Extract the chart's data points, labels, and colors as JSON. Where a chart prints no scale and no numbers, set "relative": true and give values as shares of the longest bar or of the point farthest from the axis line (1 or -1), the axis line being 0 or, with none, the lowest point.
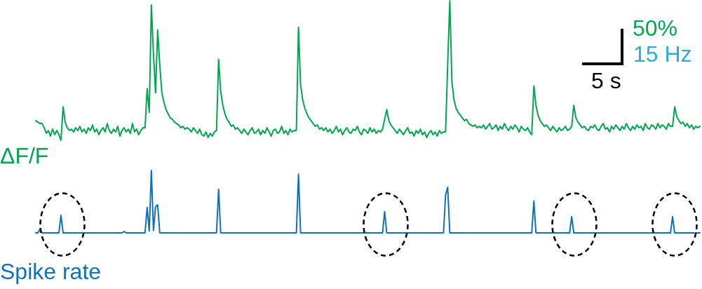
{
  "chart_data": [
    {
      "type": "line",
      "relative": true,
      "categories": [
        null,
        null,
        null,
        null,
        null,
        null,
        null,
        null,
        null,
        null,
        null,
        null,
        null,
        null,
        null,
        null,
        null,
        null,
        null,
        null,
        null,
        null,
        null,
        null,
        null,
        null,
        null,
        null,
        null,
        null,
        null,
        null,
        null,
        null,
        null,
        null,
        null,
        null,
        null,
        null,
        null,
        null,
        null,
        null,
        null,
        null,
        null,
        null,
        null,
        null,
        null,
        null,
        null,
        null,
        null,
        null,
        null,
        null,
        null,
        null,
        null,
        null,
        null,
        null,
        null,
        null,
        null,
        null,
        null,
        null,
        null,
        null,
        null,
        null,
        null,
        null,
        null,
        null,
        null,
        null,
        null,
        null,
        null,
        null,
        null,
        null,
        null,
        null,
        null,
        null,
        null,
        null,
        null,
        null,
        null,
        null,
        null,
        null,
        null,
        null,
        null,
        null,
        null,
        null,
        null,
        null,
        null,
        null,
        null,
        null,
        null,
        null,
        null,
        null,
        null,
        null,
        null,
        null,
        null,
        null,
        null,
        null,
        null,
        null,
        null,
        null,
        null,
        null,
        null,
        null,
        null,
        null,
        null,
        null,
        null,
        null,
        null,
        null,
        null,
        null,
        null,
        null,
        null,
        null,
        null,
        null,
        null,
        null,
        null,
        null,
        null,
        null,
        null,
        null,
        null,
        null,
        null,
        null,
        null,
        null,
        null,
        null,
        null,
        null,
        null,
        null,
        null,
        null,
        null,
        null,
        null,
        null,
        null,
        null,
        null,
        null,
        null,
        null,
        null,
        null,
        null,
        null,
        null,
        null,
        null,
        null,
        null,
        null,
        null,
        null,
        null,
        null,
        null,
        null,
        null,
        null,
        null,
        null,
        null,
        null,
        null,
        null,
        null,
        null,
        null,
        null,
        null,
        null,
        null,
        null,
        null,
        null,
        null,
        null,
        null,
        null,
        null,
        null,
        null,
        null,
        null,
        null,
        null,
        null,
        null,
        null,
        null,
        null,
        null,
        null,
        null,
        null,
        null,
        null,
        null,
        null,
        null,
        null,
        null,
        null,
        null,
        null,
        null,
        null,
        null,
        null,
        null,
        null,
        null,
        null,
        null,
        null,
        null,
        null,
        null,
        null,
        null,
        null,
        null,
        null,
        null,
        null,
        null,
        null,
        null,
        null,
        null,
        null,
        null,
        null,
        null,
        null,
        null,
        null,
        null,
        null,
        null,
        null,
        null,
        null,
        null,
        null,
        null,
        null,
        null,
        null,
        null,
        null,
        null,
        null,
        null,
        null,
        null,
        null,
        null,
        null,
        null,
        null,
        null,
        null,
        null,
        null,
        null,
        null,
        null,
        null,
        null,
        null,
        null,
        null,
        null,
        null,
        null,
        null,
        null,
        null,
        null
      ],
      "series": [
        {
          "name": "ΔF/F",
          "color": "#00a650",
          "values": [
            0.14,
            0.13,
            0.12,
            0.12,
            0.09,
            0.05,
            0.07,
            0.03,
            0.08,
            0.04,
            0.07,
            0.04,
            0,
            0.24,
            0.13,
            0.09,
            0.07,
            0.08,
            0.06,
            0.09,
            0.07,
            0.1,
            0.06,
            0.08,
            0.05,
            0.09,
            0.07,
            0.11,
            0.06,
            0.08,
            0.04,
            0.07,
            0.09,
            0.06,
            0.12,
            0.07,
            0.05,
            0.08,
            0.06,
            0.1,
            0.03,
            0.07,
            0.09,
            0.06,
            0.08,
            0.05,
            0.12,
            0.06,
            0.08,
            0.04,
            0.07,
            0.09,
            0.09,
            0.37,
            0.2,
            0.97,
            0.62,
            0.34,
            0.79,
            0.54,
            0.34,
            0.27,
            0.22,
            0.19,
            0.16,
            0.15,
            0.13,
            0.12,
            0.11,
            0.09,
            0.1,
            0.08,
            0.09,
            0.08,
            0.06,
            0.09,
            0.07,
            0.05,
            0.08,
            0.04,
            0.03,
            0.06,
            0.02,
            0.05,
            0.03,
            0.06,
            0.07,
            0.58,
            0.35,
            0.25,
            0.19,
            0.15,
            0.13,
            0.1,
            0.11,
            0.08,
            0.09,
            0.07,
            0.05,
            0.08,
            0.06,
            0.04,
            0.07,
            0.09,
            0.05,
            0.06,
            0.08,
            0.04,
            0.07,
            0.05,
            0.09,
            0.06,
            0.03,
            0.07,
            0.08,
            0.05,
            0.06,
            0.1,
            0.05,
            0.07,
            0.04,
            0.08,
            0.06,
            0.07,
            0.07,
            0.81,
            0.4,
            0.29,
            0.23,
            0.19,
            0.16,
            0.14,
            0.12,
            0.1,
            0.11,
            0.08,
            0.09,
            0.07,
            0.09,
            0.06,
            0.08,
            0.05,
            0.07,
            0.1,
            0.06,
            0.08,
            0.04,
            0.07,
            0.09,
            0.06,
            0.05,
            0.08,
            0.07,
            0.1,
            0.06,
            0.04,
            0.08,
            0.07,
            0.05,
            0.09,
            0.06,
            0.08,
            0.05,
            0.07,
            0.06,
            0.08,
            0.15,
            0.22,
            0.14,
            0.11,
            0.09,
            0.07,
            0.05,
            0.08,
            0.06,
            0.04,
            0.07,
            0.09,
            0.05,
            0.06,
            0.03,
            0.07,
            0.05,
            0.08,
            0.04,
            0.06,
            0.02,
            0.05,
            0.07,
            0.04,
            0.06,
            0.03,
            0.07,
            0.05,
            0.06,
            0.06,
            0.55,
            1.0,
            0.42,
            0.29,
            0.23,
            0.2,
            0.18,
            0.16,
            0.14,
            0.15,
            0.12,
            0.11,
            0.1,
            0.11,
            0.09,
            0.1,
            0.09,
            0.11,
            0.08,
            0.1,
            0.12,
            0.08,
            0.09,
            0.11,
            0.07,
            0.1,
            0.08,
            0.12,
            0.09,
            0.07,
            0.1,
            0.08,
            0.11,
            0.09,
            0.06,
            0.1,
            0.08,
            0.07,
            0.09,
            0.06,
            0.04,
            0.39,
            0.25,
            0.18,
            0.14,
            0.12,
            0.1,
            0.11,
            0.09,
            0.07,
            0.1,
            0.08,
            0.06,
            0.09,
            0.07,
            0.08,
            0.1,
            0.07,
            0.08,
            0.1,
            0.25,
            0.16,
            0.13,
            0.11,
            0.09,
            0.1,
            0.08,
            0.07,
            0.1,
            0.09,
            0.11,
            0.08,
            0.07,
            0.1,
            0.12,
            0.08,
            0.09,
            0.06,
            0.1,
            0.08,
            0.11,
            0.09,
            0.07,
            0.1,
            0.08,
            0.12,
            0.09,
            0.07,
            0.1,
            0.08,
            0.11,
            0.09,
            0.1,
            0.07,
            0.12,
            0.09,
            0.08,
            0.11,
            0.1,
            0.08,
            0.12,
            0.09,
            0.11,
            0.1,
            0.08,
            0.12,
            0.1,
            0.1,
            0.24,
            0.17,
            0.14,
            0.12,
            0.13,
            0.1,
            0.12,
            0.09,
            0.11,
            0.08,
            0.1,
            0.09,
            0.1
          ]
        }
      ],
      "annotations": [
        "50%",
        "5 s"
      ]
    },
    {
      "type": "line",
      "relative": true,
      "categories": [
        null,
        null,
        null,
        null,
        null,
        null,
        null,
        null,
        null,
        null,
        null,
        null,
        null,
        null,
        null,
        null,
        null,
        null,
        null,
        null,
        null,
        null,
        null,
        null,
        null,
        null,
        null,
        null,
        null,
        null,
        null,
        null,
        null,
        null,
        null,
        null,
        null,
        null,
        null,
        null,
        null,
        null,
        null,
        null,
        null,
        null,
        null,
        null,
        null,
        null,
        null,
        null,
        null,
        null,
        null,
        null,
        null,
        null,
        null,
        null,
        null,
        null,
        null,
        null,
        null,
        null,
        null,
        null,
        null,
        null,
        null,
        null,
        null,
        null,
        null,
        null,
        null,
        null,
        null,
        null,
        null,
        null,
        null,
        null,
        null,
        null,
        null,
        null,
        null,
        null,
        null,
        null,
        null,
        null,
        null,
        null,
        null,
        null,
        null,
        null,
        null,
        null,
        null,
        null,
        null,
        null,
        null,
        null,
        null,
        null,
        null,
        null,
        null,
        null,
        null,
        null,
        null,
        null,
        null,
        null,
        null,
        null,
        null,
        null,
        null,
        null,
        null,
        null,
        null,
        null,
        null,
        null,
        null,
        null,
        null,
        null,
        null,
        null,
        null,
        null,
        null,
        null,
        null,
        null,
        null,
        null,
        null,
        null,
        null,
        null,
        null,
        null,
        null,
        null,
        null,
        null,
        null,
        null,
        null,
        null,
        null,
        null,
        null,
        null,
        null,
        null,
        null,
        null,
        null,
        null,
        null,
        null,
        null,
        null,
        null,
        null,
        null,
        null,
        null,
        null,
        null,
        null,
        null,
        null,
        null,
        null,
        null,
        null,
        null,
        null,
        null,
        null,
        null,
        null,
        null,
        null,
        null,
        null,
        null,
        null,
        null,
        null,
        null,
        null,
        null,
        null,
        null,
        null,
        null,
        null,
        null,
        null,
        null,
        null,
        null,
        null,
        null,
        null,
        null,
        null,
        null,
        null,
        null,
        null,
        null,
        null,
        null,
        null,
        null,
        null,
        null,
        null,
        null,
        null,
        null,
        null,
        null,
        null,
        null,
        null,
        null,
        null,
        null,
        null,
        null,
        null,
        null,
        null,
        null,
        null,
        null,
        null,
        null,
        null,
        null,
        null,
        null,
        null,
        null,
        null,
        null,
        null,
        null,
        null,
        null,
        null,
        null,
        null,
        null,
        null,
        null,
        null,
        null,
        null,
        null,
        null,
        null,
        null,
        null,
        null,
        null,
        null,
        null,
        null,
        null,
        null,
        null,
        null,
        null,
        null,
        null,
        null,
        null,
        null,
        null,
        null,
        null,
        null,
        null,
        null,
        null,
        null,
        null,
        null,
        null,
        null,
        null,
        null,
        null,
        null,
        null,
        null,
        null,
        null,
        null,
        null,
        null
      ],
      "series": [
        {
          "name": "Spike rate",
          "color": "#1070b8",
          "values": [
            0,
            0,
            0.06,
            0,
            0,
            0,
            0,
            0,
            0,
            0,
            0,
            0,
            0.28,
            0,
            0,
            0,
            0,
            0,
            0,
            0,
            0,
            0,
            0,
            0,
            0,
            0,
            0,
            0,
            0,
            0,
            0,
            0,
            0,
            0,
            0,
            0,
            0,
            0,
            0,
            0,
            0,
            0,
            0.02,
            0,
            0,
            0,
            0,
            0,
            0,
            0,
            0,
            0,
            0,
            0.41,
            0.03,
            1.0,
            0.04,
            0.42,
            0.45,
            0,
            0,
            0,
            0,
            0,
            0,
            0,
            0,
            0,
            0,
            0,
            0,
            0,
            0,
            0,
            0,
            0,
            0,
            0,
            0,
            0,
            0,
            0,
            0,
            0,
            0,
            0,
            0,
            0.7,
            0,
            0,
            0,
            0,
            0,
            0,
            0,
            0,
            0,
            0,
            0,
            0,
            0,
            0,
            0,
            0,
            0,
            0,
            0,
            0,
            0,
            0,
            0,
            0,
            0,
            0,
            0,
            0,
            0,
            0,
            0,
            0,
            0,
            0,
            0,
            0,
            0,
            0.94,
            0,
            0,
            0,
            0,
            0,
            0,
            0,
            0,
            0,
            0,
            0,
            0,
            0,
            0,
            0,
            0,
            0,
            0,
            0,
            0,
            0,
            0,
            0,
            0,
            0,
            0,
            0,
            0,
            0,
            0,
            0,
            0,
            0,
            0,
            0,
            0,
            0,
            0,
            0,
            0,
            0.34,
            0,
            0,
            0,
            0,
            0,
            0,
            0,
            0,
            0,
            0,
            0,
            0,
            0,
            0,
            0,
            0,
            0,
            0,
            0,
            0,
            0,
            0,
            0,
            0,
            0,
            0,
            0,
            0,
            0.61,
            0.73,
            0,
            0,
            0,
            0,
            0,
            0,
            0,
            0,
            0,
            0,
            0,
            0,
            0,
            0,
            0,
            0,
            0,
            0,
            0,
            0,
            0,
            0,
            0,
            0,
            0,
            0,
            0,
            0,
            0,
            0,
            0,
            0,
            0,
            0,
            0,
            0,
            0,
            0,
            0,
            0,
            0.51,
            0,
            0,
            0,
            0,
            0,
            0,
            0,
            0,
            0,
            0,
            0,
            0,
            0,
            0,
            0,
            0,
            0,
            0.26,
            0,
            0,
            0,
            0,
            0,
            0,
            0,
            0,
            0,
            0,
            0,
            0,
            0,
            0,
            0,
            0,
            0,
            0,
            0,
            0,
            0,
            0,
            0,
            0,
            0,
            0,
            0,
            0,
            0,
            0,
            0,
            0,
            0,
            0,
            0,
            0,
            0,
            0,
            0,
            0,
            0,
            0,
            0,
            0,
            0,
            0,
            0,
            0.26,
            0,
            0,
            0,
            0,
            0,
            0,
            0,
            0,
            0,
            0,
            0,
            0,
            0
          ]
        }
      ],
      "annotations": [
        "15 Hz"
      ]
    }
  ]
}
